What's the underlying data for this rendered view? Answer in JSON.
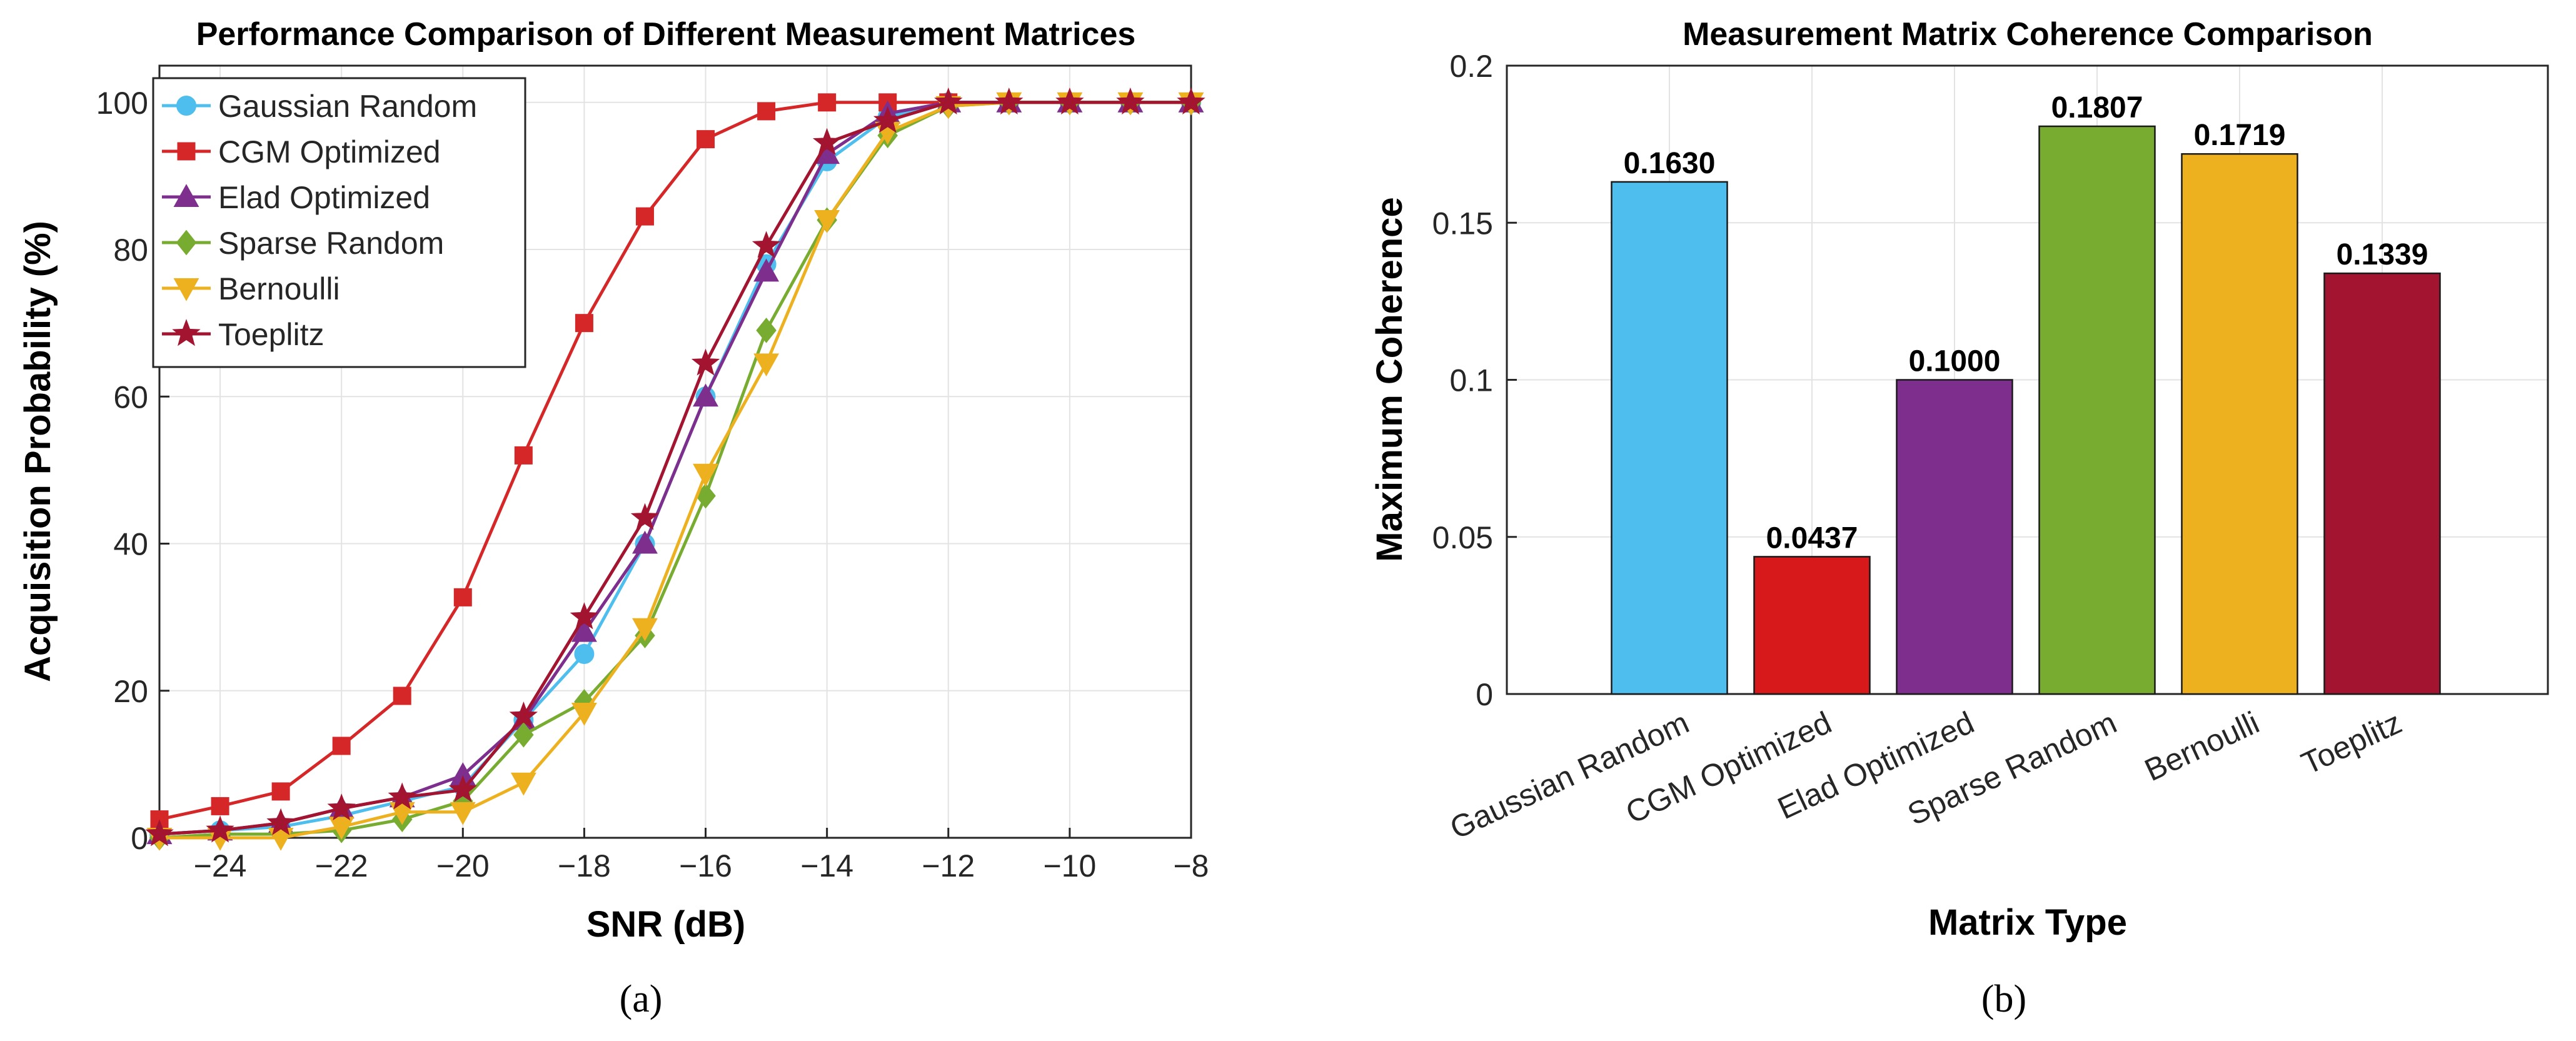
{
  "chart_data": [
    {
      "type": "line",
      "panel_label": "(a)",
      "title": "Performance Comparison of Different Measurement Matrices",
      "xlabel": "SNR (dB)",
      "ylabel": "Acquisition Probability (%)",
      "xlim": [
        -25,
        -8
      ],
      "ylim": [
        0,
        105
      ],
      "xticks": [
        -24,
        -22,
        -20,
        -18,
        -16,
        -14,
        -12,
        -10,
        -8
      ],
      "xtick_labels": [
        "−24",
        "−22",
        "−20",
        "−18",
        "−16",
        "−14",
        "−12",
        "−10",
        "−8"
      ],
      "yticks": [
        0,
        20,
        40,
        60,
        80,
        100
      ],
      "ytick_labels": [
        "0",
        "20",
        "40",
        "60",
        "80",
        "100"
      ],
      "grid": true,
      "legend_position": "top-left",
      "x": [
        -25,
        -24,
        -23,
        -22,
        -21,
        -20,
        -19,
        -18,
        -17,
        -16,
        -15,
        -14,
        -13,
        -12,
        -11,
        -10,
        -9,
        -8
      ],
      "series": [
        {
          "name": "Gaussian Random",
          "color": "#4DBEEE",
          "marker": "circle",
          "values": [
            0.5,
            1,
            1.5,
            3,
            5,
            7,
            16,
            25,
            40,
            60,
            78,
            92,
            98,
            100,
            100,
            100,
            100,
            100
          ]
        },
        {
          "name": "CGM Optimized",
          "color": "#D62728",
          "marker": "square",
          "values": [
            2.5,
            4.3,
            6.3,
            12.5,
            19.3,
            32.7,
            52,
            70,
            84.5,
            95,
            98.8,
            100,
            100,
            100,
            100,
            100,
            100,
            100
          ]
        },
        {
          "name": "Elad Optimized",
          "color": "#7E2F8E",
          "marker": "triangle-up",
          "values": [
            0.5,
            1,
            2,
            4,
            5.5,
            8.5,
            16,
            28,
            40,
            60,
            77,
            93,
            98.5,
            100,
            100,
            100,
            100,
            100
          ]
        },
        {
          "name": "Sparse Random",
          "color": "#77AC30",
          "marker": "diamond",
          "values": [
            0,
            0.5,
            0.5,
            1,
            2.5,
            5,
            14,
            18.5,
            27.5,
            46.5,
            69,
            84,
            95.5,
            99.5,
            100,
            100,
            100,
            100
          ]
        },
        {
          "name": "Bernoulli",
          "color": "#EDB120",
          "marker": "triangle-down",
          "values": [
            0,
            0,
            0,
            1.5,
            3.5,
            3.5,
            7.5,
            17,
            28.5,
            49.5,
            64.5,
            84,
            96,
            99.5,
            100,
            100,
            100,
            100
          ]
        },
        {
          "name": "Toeplitz",
          "color": "#A2142F",
          "marker": "pentagram",
          "values": [
            0.5,
            1,
            2,
            4,
            5.5,
            6.5,
            16.5,
            30,
            43.5,
            64.5,
            80.5,
            94.5,
            97.5,
            100,
            100,
            100,
            100,
            100
          ]
        }
      ]
    },
    {
      "type": "bar",
      "panel_label": "(b)",
      "title": "Measurement Matrix Coherence Comparison",
      "xlabel": "Matrix Type",
      "ylabel": "Maximum Coherence",
      "ylim": [
        0,
        0.2
      ],
      "yticks": [
        0,
        0.05,
        0.1,
        0.15,
        0.2
      ],
      "ytick_labels": [
        "0",
        "0.05",
        "0.1",
        "0.15",
        "0.2"
      ],
      "grid": true,
      "categories": [
        "Gaussian Random",
        "CGM Optimized",
        "Elad Optimized",
        "Sparse Random",
        "Bernoulli",
        "Toeplitz"
      ],
      "values": [
        0.163,
        0.0437,
        0.1,
        0.1807,
        0.1719,
        0.1339
      ],
      "value_labels": [
        "0.1630",
        "0.0437",
        "0.1000",
        "0.1807",
        "0.1719",
        "0.1339"
      ],
      "colors": [
        "#4DBEEE",
        "#D7191C",
        "#7E2F8E",
        "#77AC30",
        "#EDB120",
        "#A2142F"
      ]
    }
  ]
}
